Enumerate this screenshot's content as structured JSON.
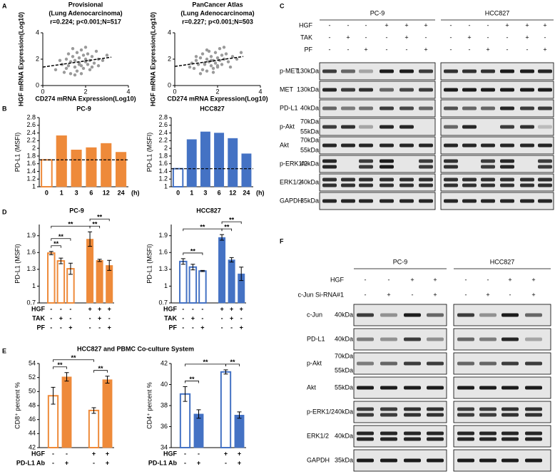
{
  "panel_labels": [
    "A",
    "B",
    "C",
    "D",
    "E",
    "F"
  ],
  "panel_titles": {
    "E": "HCC827 and PBMC Co-culture System"
  },
  "chart_data": [
    {
      "type": "scatter",
      "title": "Provisional",
      "subtitle": "(Lung Adenocarcinoma)",
      "annotation": "r=0.224; p<0.001;N=517",
      "x_label": "CD274 mRNA Expression(Log10)",
      "y_label": "HGF mRNA Expression(Log10)",
      "color": "#9a9a9a",
      "xlim": [
        0,
        4
      ],
      "ylim": [
        0,
        4
      ],
      "xticks": [
        0,
        2,
        4
      ],
      "yticks": [
        0,
        2,
        4
      ],
      "x": [
        0.6,
        0.9,
        1.0,
        1.1,
        1.2,
        1.3,
        1.3,
        1.4,
        1.5,
        1.5,
        1.6,
        1.6,
        1.7,
        1.7,
        1.8,
        1.8,
        1.9,
        1.9,
        2.0,
        2.0,
        2.1,
        2.1,
        2.2,
        2.2,
        2.3,
        2.4,
        2.5,
        2.6,
        2.8,
        3.0,
        1.2,
        1.5,
        1.8,
        2.0,
        2.3,
        1.1,
        1.4,
        2.6,
        0.8,
        1.7
      ],
      "values": [
        1.2,
        1.6,
        1.0,
        2.0,
        1.5,
        1.8,
        0.9,
        2.2,
        1.4,
        1.9,
        2.5,
        1.1,
        1.7,
        2.1,
        1.5,
        2.7,
        1.3,
        2.3,
        1.8,
        2.0,
        1.6,
        2.4,
        1.2,
        1.9,
        2.2,
        1.7,
        2.6,
        2.0,
        1.9,
        2.3,
        2.4,
        0.8,
        0.9,
        2.9,
        1.4,
        1.3,
        2.8,
        1.5,
        1.9,
        1.6
      ],
      "trendline": {
        "x": [
          0,
          3.2
        ],
        "values": [
          1.4,
          2.15
        ]
      }
    },
    {
      "type": "scatter",
      "title": "PanCancer Atlas",
      "subtitle": "(Lung Adenocarcinoma)",
      "annotation": "r=0.227; p<0.001;N=503",
      "x_label": "CD274 mRNA Expression(Log10)",
      "y_label": "HGF mRNA Expression(Log10)",
      "color": "#9a9a9a",
      "xlim": [
        0,
        4
      ],
      "ylim": [
        0,
        4
      ],
      "xticks": [
        0,
        2,
        4
      ],
      "yticks": [
        0,
        2,
        4
      ],
      "x": [
        0.7,
        0.9,
        1.0,
        1.1,
        1.2,
        1.3,
        1.3,
        1.4,
        1.5,
        1.5,
        1.6,
        1.6,
        1.7,
        1.7,
        1.8,
        1.8,
        1.9,
        1.9,
        2.0,
        2.0,
        2.1,
        2.1,
        2.2,
        2.2,
        2.3,
        2.4,
        2.5,
        2.7,
        2.9,
        3.1,
        1.2,
        1.5,
        1.8,
        2.0,
        2.3,
        1.0,
        1.4,
        2.6,
        0.8,
        1.7
      ],
      "values": [
        1.4,
        1.3,
        1.9,
        1.6,
        2.1,
        1.2,
        2.4,
        1.7,
        2.0,
        1.1,
        1.8,
        2.6,
        1.5,
        2.2,
        1.9,
        1.3,
        2.5,
        1.7,
        2.1,
        1.4,
        2.8,
        1.9,
        1.6,
        2.3,
        2.0,
        2.4,
        1.8,
        2.2,
        2.0,
        2.5,
        0.9,
        2.7,
        1.0,
        1.5,
        2.9,
        2.2,
        1.6,
        1.4,
        1.7,
        1.9
      ],
      "trendline": {
        "x": [
          0,
          3.2
        ],
        "values": [
          1.45,
          2.2
        ]
      }
    },
    {
      "type": "bar",
      "title": "PC-9",
      "y_label": "PD-L1 (MSFI)",
      "x_label": "(h)",
      "color": "#ee8a3a",
      "categories": [
        "0",
        "1",
        "3",
        "6",
        "12",
        "24"
      ],
      "values": [
        1.7,
        2.33,
        1.96,
        2.02,
        2.13,
        1.9
      ],
      "hollow": [
        true,
        false,
        false,
        false,
        false,
        false
      ],
      "reference_line": 1.7,
      "ylim": [
        1,
        2.8
      ],
      "yticks": [
        1,
        1.2,
        1.4,
        1.6,
        1.8,
        2,
        2.2,
        2.4,
        2.6,
        2.8
      ]
    },
    {
      "type": "bar",
      "title": "HCC827",
      "y_label": "PD-L1 (MSFI)",
      "x_label": "(h)",
      "color": "#4472c4",
      "categories": [
        "0",
        "1",
        "3",
        "6",
        "12",
        "24"
      ],
      "values": [
        1.47,
        2.23,
        2.43,
        2.4,
        2.26,
        1.86
      ],
      "hollow": [
        true,
        false,
        false,
        false,
        false,
        false
      ],
      "reference_line": 1.47,
      "ylim": [
        1,
        2.8
      ],
      "yticks": [
        1,
        1.2,
        1.4,
        1.6,
        1.8,
        2,
        2.2,
        2.4,
        2.6,
        2.8
      ]
    },
    {
      "type": "bar",
      "title": "PC-9",
      "y_label": "PD-L1 (MSFI)",
      "color": "#ee8a3a",
      "values": [
        1.59,
        1.45,
        1.31,
        1.84,
        1.46,
        1.37
      ],
      "errors": [
        0.03,
        0.05,
        0.1,
        0.13,
        0.02,
        0.09
      ],
      "hollow": [
        true,
        true,
        true,
        false,
        false,
        false
      ],
      "ylim": [
        0.7,
        2.1
      ],
      "yticks": [
        0.7,
        1,
        1.3,
        1.6,
        1.9
      ],
      "conditions": [
        {
          "name": "HGF",
          "values": [
            "-",
            "-",
            "-",
            "+",
            "+",
            "+"
          ]
        },
        {
          "name": "TAK",
          "values": [
            "-",
            "+",
            "-",
            "-",
            "+",
            "-"
          ]
        },
        {
          "name": "PF",
          "values": [
            "-",
            "-",
            "+",
            "-",
            "-",
            "+"
          ]
        }
      ],
      "annotations": [
        {
          "text": "**",
          "between": [
            0,
            1
          ]
        },
        {
          "text": "**",
          "between": [
            0,
            2
          ]
        },
        {
          "text": "**",
          "between": [
            0,
            3
          ]
        },
        {
          "text": "**",
          "between": [
            3,
            4
          ]
        },
        {
          "text": "**",
          "between": [
            3,
            5
          ]
        }
      ]
    },
    {
      "type": "bar",
      "title": "HCC827",
      "y_label": "PD-L1 (MSFI)",
      "color": "#4472c4",
      "values": [
        1.44,
        1.34,
        1.27,
        1.87,
        1.47,
        1.22
      ],
      "errors": [
        0.05,
        0.05,
        0.01,
        0.05,
        0.04,
        0.12
      ],
      "hollow": [
        true,
        true,
        true,
        false,
        false,
        false
      ],
      "ylim": [
        0.7,
        2.1
      ],
      "yticks": [
        0.7,
        1,
        1.3,
        1.6,
        1.9
      ],
      "conditions": [
        {
          "name": "HGF",
          "values": [
            "-",
            "-",
            "-",
            "+",
            "+",
            "+"
          ]
        },
        {
          "name": "TAK",
          "values": [
            "-",
            "+",
            "-",
            "-",
            "+",
            "-"
          ]
        },
        {
          "name": "PF",
          "values": [
            "-",
            "-",
            "+",
            "-",
            "-",
            "+"
          ]
        }
      ],
      "annotations": [
        {
          "text": "**",
          "between": [
            0,
            2
          ]
        },
        {
          "text": "**",
          "between": [
            0,
            3
          ]
        },
        {
          "text": "**",
          "between": [
            3,
            4
          ]
        },
        {
          "text": "**",
          "between": [
            3,
            5
          ]
        }
      ]
    },
    {
      "type": "bar",
      "y_label": "CD8⁺ percent %",
      "color": "#ee8a3a",
      "values": [
        49.4,
        52.1,
        47.3,
        51.7
      ],
      "errors": [
        1.2,
        0.6,
        0.4,
        0.5
      ],
      "hollow": [
        true,
        false,
        true,
        false
      ],
      "ylim": [
        42,
        54
      ],
      "yticks": [
        42,
        44,
        46,
        48,
        50,
        52,
        54
      ],
      "conditions": [
        {
          "name": "HGF",
          "values": [
            "-",
            "-",
            "+",
            "+"
          ]
        },
        {
          "name": "PD-L1 Ab",
          "values": [
            "-",
            "+",
            "-",
            "+"
          ]
        }
      ],
      "annotations": [
        {
          "text": "**",
          "between": [
            0,
            1
          ]
        },
        {
          "text": "**",
          "between": [
            0,
            2
          ]
        },
        {
          "text": "**",
          "between": [
            2,
            3
          ]
        }
      ]
    },
    {
      "type": "bar",
      "y_label": "CD4⁺ percent %",
      "color": "#4472c4",
      "values": [
        39.1,
        37.2,
        41.2,
        37.1
      ],
      "errors": [
        0.7,
        0.4,
        0.2,
        0.3
      ],
      "hollow": [
        true,
        false,
        true,
        false
      ],
      "ylim": [
        34,
        42
      ],
      "yticks": [
        34,
        36,
        38,
        40,
        42
      ],
      "conditions": [
        {
          "name": "HGF",
          "values": [
            "-",
            "-",
            "+",
            "+"
          ]
        },
        {
          "name": "PD-L1 Ab",
          "values": [
            "-",
            "+",
            "-",
            "+"
          ]
        }
      ],
      "annotations": [
        {
          "text": "**",
          "between": [
            0,
            1
          ]
        },
        {
          "text": "**",
          "between": [
            0,
            2
          ]
        },
        {
          "text": "**",
          "between": [
            2,
            3
          ]
        }
      ]
    }
  ],
  "blots": [
    {
      "groups": [
        "PC-9",
        "HCC827"
      ],
      "conditions": [
        {
          "name": "HGF",
          "values": [
            "-",
            "-",
            "-",
            "+",
            "+",
            "+",
            "-",
            "-",
            "-",
            "+",
            "+",
            "+"
          ]
        },
        {
          "name": "TAK",
          "values": [
            "-",
            "+",
            "-",
            "-",
            "+",
            "-",
            "-",
            "+",
            "-",
            "-",
            "+",
            "-"
          ]
        },
        {
          "name": "PF",
          "values": [
            "-",
            "-",
            "+",
            "-",
            "-",
            "+",
            "-",
            "-",
            "+",
            "-",
            "-",
            "+"
          ]
        }
      ],
      "rows": [
        {
          "name": "p-MET",
          "markers": [
            "130kDa"
          ]
        },
        {
          "name": "MET",
          "markers": [
            "130kDa"
          ]
        },
        {
          "name": "PD-L1",
          "markers": [
            "40kDa"
          ]
        },
        {
          "name": "p-Akt",
          "markers": [
            "70kDa",
            "55kDa"
          ]
        },
        {
          "name": "Akt",
          "markers": [
            "70kDa",
            "55kDa"
          ]
        },
        {
          "name": "p-ERK1/2",
          "markers": [
            "40kDa"
          ]
        },
        {
          "name": "ERK1/2",
          "markers": [
            "40kDa"
          ]
        },
        {
          "name": "GAPDH",
          "markers": [
            "35kDa"
          ]
        }
      ]
    },
    {
      "groups": [
        "PC-9",
        "HCC827"
      ],
      "conditions": [
        {
          "name": "HGF",
          "values": [
            "-",
            "-",
            "+",
            "+",
            "-",
            "-",
            "+",
            "+"
          ]
        },
        {
          "name": "c-Jun Si-RNA#1",
          "values": [
            "-",
            "+",
            "-",
            "+",
            "-",
            "+",
            "-",
            "+"
          ]
        }
      ],
      "rows": [
        {
          "name": "c-Jun",
          "markers": [
            "40kDa"
          ]
        },
        {
          "name": "PD-L1",
          "markers": [
            "40kDa"
          ]
        },
        {
          "name": "p-Akt",
          "markers": [
            "70kDa",
            "55kDa"
          ]
        },
        {
          "name": "Akt",
          "markers": [
            "55kDa"
          ]
        },
        {
          "name": "p-ERK1/2",
          "markers": [
            "40kDa"
          ]
        },
        {
          "name": "ERK1/2",
          "markers": [
            "40kDa"
          ]
        },
        {
          "name": "GAPDH",
          "markers": [
            "35kDa"
          ]
        }
      ]
    }
  ]
}
